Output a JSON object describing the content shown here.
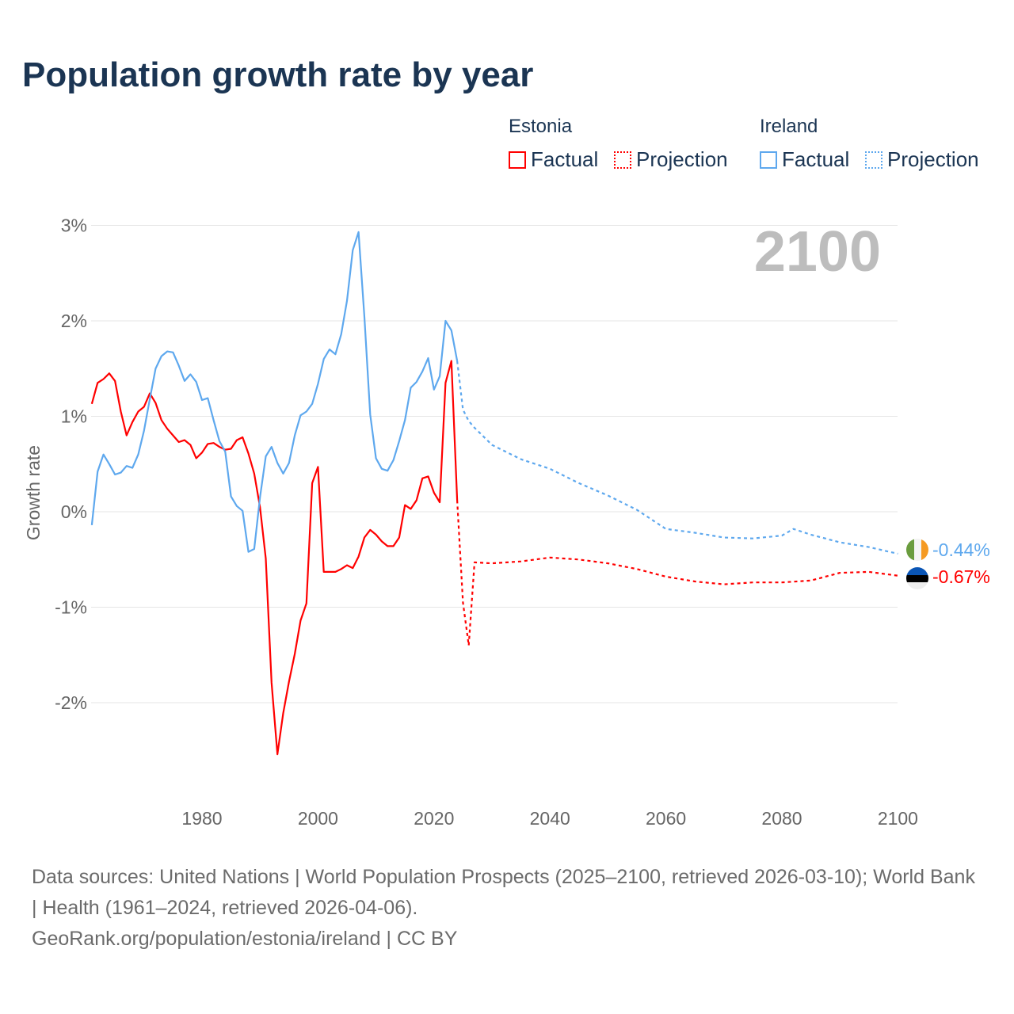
{
  "title": "Population growth rate by year",
  "legend": {
    "groups": [
      {
        "name": "Estonia",
        "factual": "Factual",
        "projection": "Projection",
        "color": "#ff0000"
      },
      {
        "name": "Ireland",
        "factual": "Factual",
        "projection": "Projection",
        "color": "#5ea8ee"
      }
    ]
  },
  "year_label": "2100",
  "end_labels": {
    "ireland": "-0.44%",
    "estonia": "-0.67%"
  },
  "source_lines": [
    "Data sources: United Nations | World Population Prospects (2025–2100, retrieved 2026-03-10); World Bank | Health (1961–2024, retrieved 2026-04-06).",
    "GeoRank.org/population/estonia/ireland | CC BY"
  ],
  "chart_data": {
    "type": "line",
    "title": "Population growth rate by year",
    "xlabel": "",
    "ylabel": "Growth rate",
    "xlim": [
      1960,
      2100
    ],
    "ylim": [
      -3,
      3.2
    ],
    "xticks": [
      1980,
      2000,
      2020,
      2040,
      2060,
      2080,
      2100
    ],
    "yticks": [
      3,
      2,
      1,
      0,
      -1,
      -2
    ],
    "ytick_labels": [
      "3%",
      "2%",
      "1%",
      "0%",
      "-1%",
      "-2%"
    ],
    "grid": true,
    "legend_position": "top-right",
    "series": [
      {
        "name": "Estonia Factual",
        "color": "#ff0000",
        "dashed": false,
        "x": [
          1961,
          1962,
          1963,
          1964,
          1965,
          1966,
          1967,
          1968,
          1969,
          1970,
          1971,
          1972,
          1973,
          1974,
          1975,
          1976,
          1977,
          1978,
          1979,
          1980,
          1981,
          1982,
          1983,
          1984,
          1985,
          1986,
          1987,
          1988,
          1989,
          1990,
          1991,
          1992,
          1993,
          1994,
          1995,
          1996,
          1997,
          1998,
          1999,
          2000,
          2001,
          2002,
          2003,
          2004,
          2005,
          2006,
          2007,
          2008,
          2009,
          2010,
          2011,
          2012,
          2013,
          2014,
          2015,
          2016,
          2017,
          2018,
          2019,
          2020,
          2021,
          2022,
          2023,
          2024
        ],
        "y": [
          1.13,
          1.35,
          1.39,
          1.45,
          1.37,
          1.05,
          0.8,
          0.94,
          1.05,
          1.1,
          1.24,
          1.14,
          0.96,
          0.87,
          0.8,
          0.73,
          0.75,
          0.7,
          0.56,
          0.62,
          0.71,
          0.72,
          0.68,
          0.65,
          0.66,
          0.75,
          0.78,
          0.61,
          0.4,
          0.05,
          -0.49,
          -1.79,
          -2.54,
          -2.11,
          -1.78,
          -1.49,
          -1.14,
          -0.96,
          0.3,
          0.47,
          -0.63,
          -0.63,
          -0.63,
          -0.6,
          -0.56,
          -0.59,
          -0.47,
          -0.27,
          -0.19,
          -0.24,
          -0.31,
          -0.36,
          -0.36,
          -0.27,
          0.07,
          0.03,
          0.12,
          0.35,
          0.37,
          0.2,
          0.1,
          1.35,
          1.58,
          0.12
        ]
      },
      {
        "name": "Estonia Projection",
        "color": "#ff0000",
        "dashed": true,
        "x": [
          2024,
          2025,
          2026,
          2027,
          2030,
          2035,
          2040,
          2045,
          2050,
          2055,
          2060,
          2065,
          2070,
          2075,
          2080,
          2085,
          2090,
          2095,
          2100
        ],
        "y": [
          0.12,
          -0.95,
          -1.4,
          -0.53,
          -0.54,
          -0.52,
          -0.48,
          -0.5,
          -0.54,
          -0.6,
          -0.68,
          -0.73,
          -0.76,
          -0.74,
          -0.74,
          -0.72,
          -0.64,
          -0.63,
          -0.67
        ]
      },
      {
        "name": "Ireland Factual",
        "color": "#5ea8ee",
        "dashed": false,
        "x": [
          1961,
          1962,
          1963,
          1964,
          1965,
          1966,
          1967,
          1968,
          1969,
          1970,
          1971,
          1972,
          1973,
          1974,
          1975,
          1976,
          1977,
          1978,
          1979,
          1980,
          1981,
          1982,
          1983,
          1984,
          1985,
          1986,
          1987,
          1988,
          1989,
          1990,
          1991,
          1992,
          1993,
          1994,
          1995,
          1996,
          1997,
          1998,
          1999,
          2000,
          2001,
          2002,
          2003,
          2004,
          2005,
          2006,
          2007,
          2008,
          2009,
          2010,
          2011,
          2012,
          2013,
          2014,
          2015,
          2016,
          2017,
          2018,
          2019,
          2020,
          2021,
          2022,
          2023,
          2024
        ],
        "y": [
          -0.14,
          0.42,
          0.6,
          0.5,
          0.39,
          0.41,
          0.48,
          0.46,
          0.6,
          0.85,
          1.18,
          1.5,
          1.63,
          1.68,
          1.67,
          1.53,
          1.37,
          1.44,
          1.36,
          1.17,
          1.19,
          0.96,
          0.74,
          0.63,
          0.16,
          0.06,
          0.01,
          -0.42,
          -0.39,
          0.15,
          0.58,
          0.68,
          0.51,
          0.4,
          0.51,
          0.8,
          1.01,
          1.05,
          1.13,
          1.34,
          1.6,
          1.7,
          1.65,
          1.86,
          2.21,
          2.74,
          2.93,
          2.04,
          1.02,
          0.56,
          0.45,
          0.43,
          0.54,
          0.74,
          0.96,
          1.3,
          1.36,
          1.47,
          1.61,
          1.28,
          1.42,
          2.0,
          1.9,
          1.58
        ]
      },
      {
        "name": "Ireland Projection",
        "color": "#5ea8ee",
        "dashed": true,
        "x": [
          2024,
          2025,
          2026,
          2027,
          2028,
          2030,
          2035,
          2040,
          2045,
          2050,
          2055,
          2060,
          2065,
          2070,
          2075,
          2080,
          2082,
          2085,
          2090,
          2095,
          2100
        ],
        "y": [
          1.58,
          1.07,
          0.95,
          0.88,
          0.82,
          0.7,
          0.55,
          0.45,
          0.3,
          0.17,
          0.02,
          -0.18,
          -0.22,
          -0.27,
          -0.28,
          -0.25,
          -0.18,
          -0.24,
          -0.32,
          -0.37,
          -0.44
        ]
      }
    ]
  }
}
